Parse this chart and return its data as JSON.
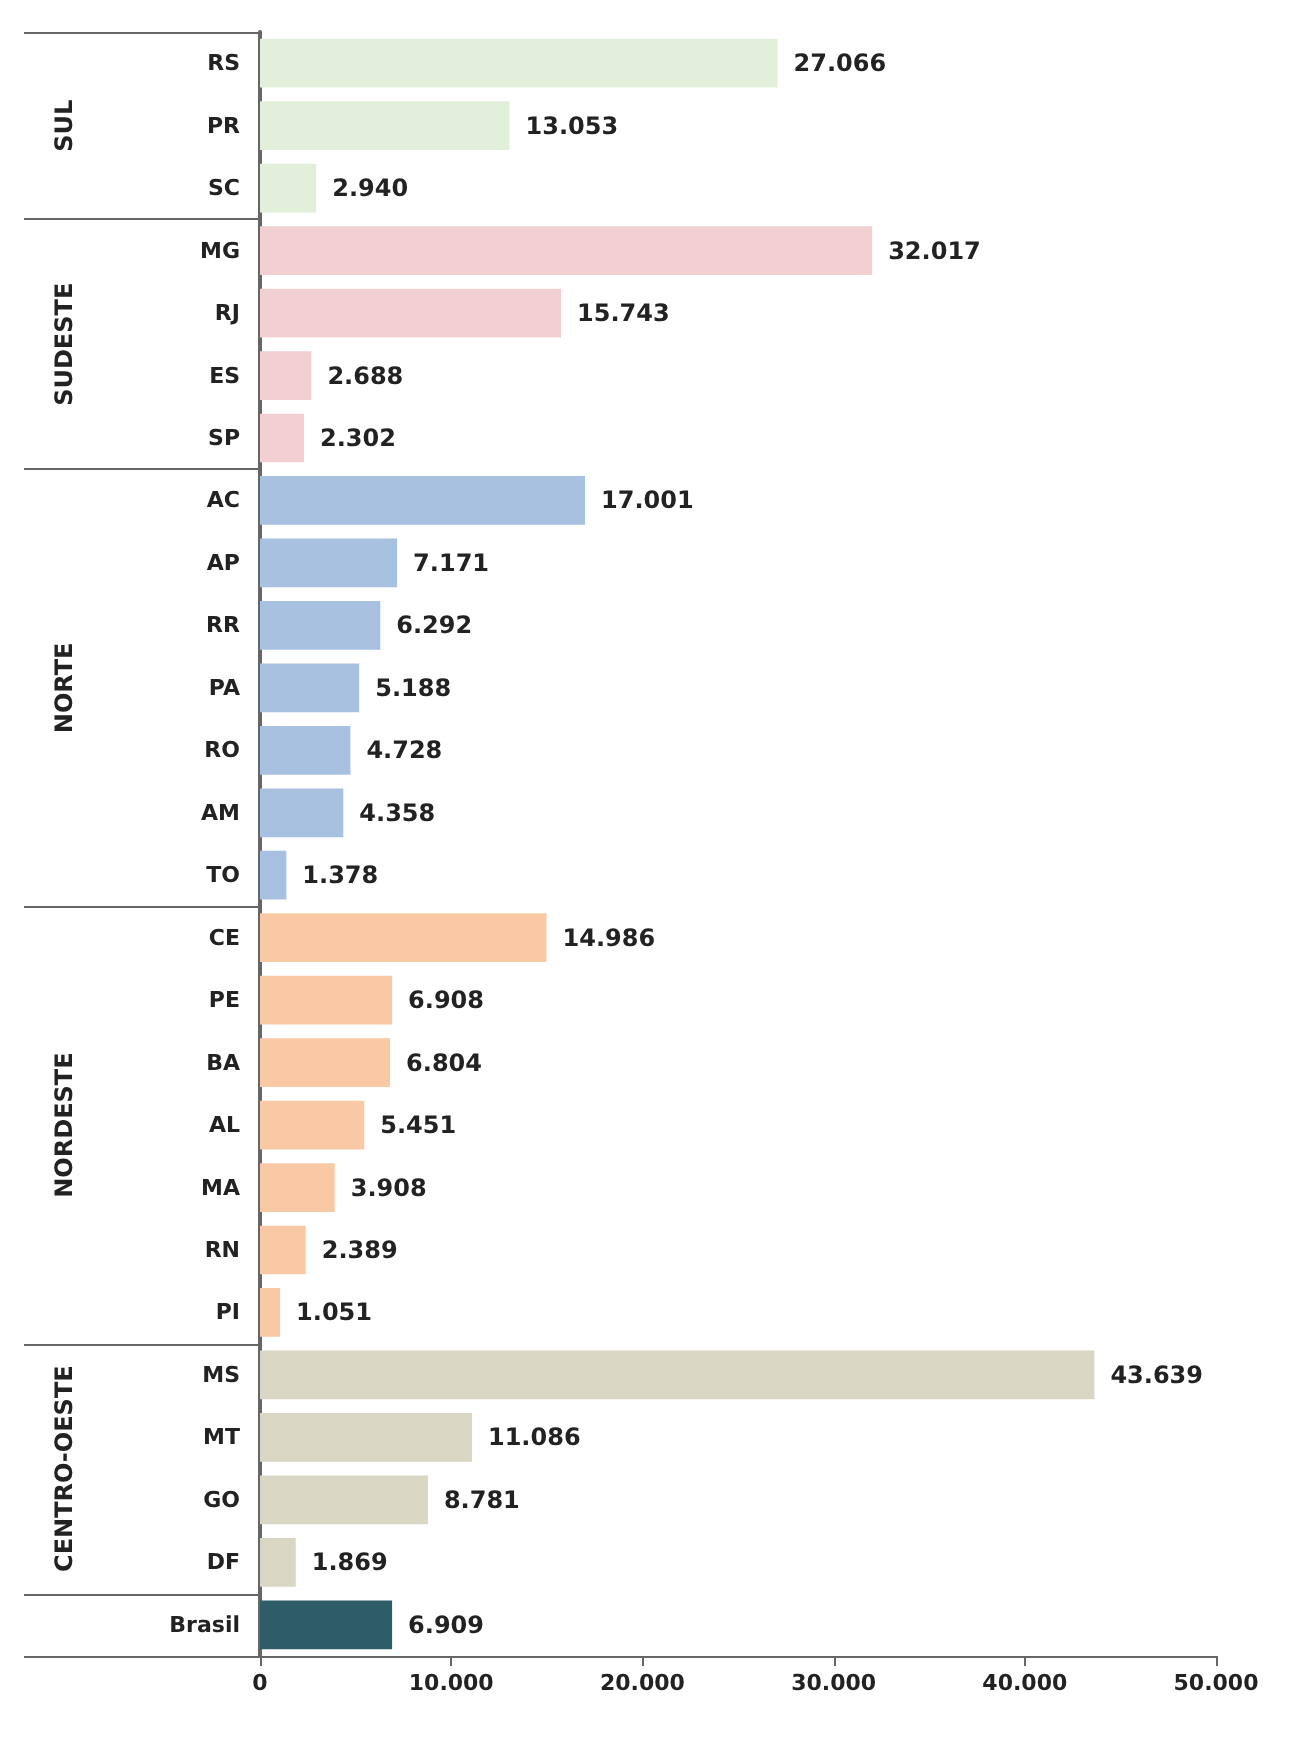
{
  "chart_data": {
    "type": "bar",
    "orientation": "horizontal",
    "categories": [
      "RS",
      "PR",
      "SC",
      "MG",
      "RJ",
      "ES",
      "SP",
      "AC",
      "AP",
      "RR",
      "PA",
      "RO",
      "AM",
      "TO",
      "CE",
      "PE",
      "BA",
      "AL",
      "MA",
      "RN",
      "PI",
      "MS",
      "MT",
      "GO",
      "DF",
      "Brasil"
    ],
    "values": [
      27066,
      13053,
      2940,
      32017,
      15743,
      2688,
      2302,
      17001,
      7171,
      6292,
      5188,
      4728,
      4358,
      1378,
      14986,
      6908,
      6804,
      5451,
      3908,
      2389,
      1051,
      43639,
      11086,
      8781,
      1869,
      6909
    ],
    "value_labels": [
      "27.066",
      "13.053",
      "2.940",
      "32.017",
      "15.743",
      "2.688",
      "2.302",
      "17.001",
      "7.171",
      "6.292",
      "5.188",
      "4.728",
      "4.358",
      "1.378",
      "14.986",
      "6.908",
      "6.804",
      "5.451",
      "3.908",
      "2.389",
      "1.051",
      "43.639",
      "11.086",
      "8.781",
      "1.869",
      "6.909"
    ],
    "colors": [
      "#e2efda",
      "#e2efda",
      "#e2efda",
      "#f2cfd0",
      "#f2cfd0",
      "#f2cfd0",
      "#f2cfd0",
      "#a9c1e0",
      "#a9c1e0",
      "#a9c1e0",
      "#a9c1e0",
      "#a9c1e0",
      "#a9c1e0",
      "#a9c1e0",
      "#f9c9a6",
      "#f9c9a6",
      "#f9c9a6",
      "#f9c9a6",
      "#f9c9a6",
      "#f9c9a6",
      "#f9c9a6",
      "#d9d6c3",
      "#d9d6c3",
      "#d9d6c3",
      "#d9d6c3",
      "#2e5d68"
    ],
    "annotations": [
      "SUL",
      "SUDESTE",
      "NORTE",
      "NORDESTE",
      "CENTRO-OESTE"
    ],
    "xlim": [
      0,
      50000
    ],
    "xticks": [
      {
        "value": 0,
        "label": "0"
      },
      {
        "value": 10000,
        "label": "10.000"
      },
      {
        "value": 20000,
        "label": "20.000"
      },
      {
        "value": 30000,
        "label": "30.000"
      },
      {
        "value": 40000,
        "label": "40.000"
      },
      {
        "value": 50000,
        "label": "50.000"
      }
    ],
    "grid": false
  }
}
